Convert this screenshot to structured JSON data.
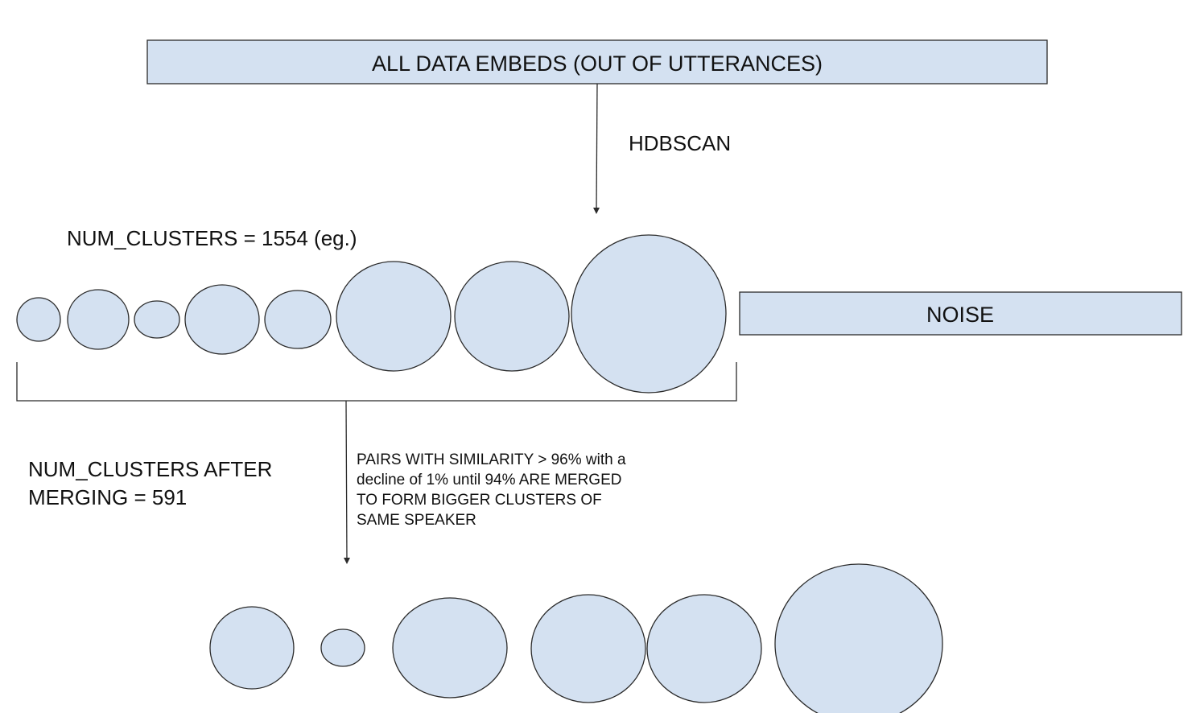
{
  "nodes": {
    "all_data": "ALL DATA EMBEDS (OUT OF UTTERANCES)",
    "noise": "NOISE"
  },
  "edges": {
    "hdbscan": "HDBSCAN",
    "merge_rule": [
      "PAIRS WITH SIMILARITY > 96% with a",
      "decline of 1% until 94% ARE MERGED",
      "TO FORM BIGGER CLUSTERS OF",
      "SAME SPEAKER"
    ]
  },
  "labels": {
    "num_clusters_before": "NUM_CLUSTERS = 1554 (eg.)",
    "num_clusters_after": [
      "NUM_CLUSTERS AFTER",
      "MERGING = 591"
    ]
  },
  "colors": {
    "fill": "#d4e1f1",
    "stroke": "#2b2b2b"
  }
}
